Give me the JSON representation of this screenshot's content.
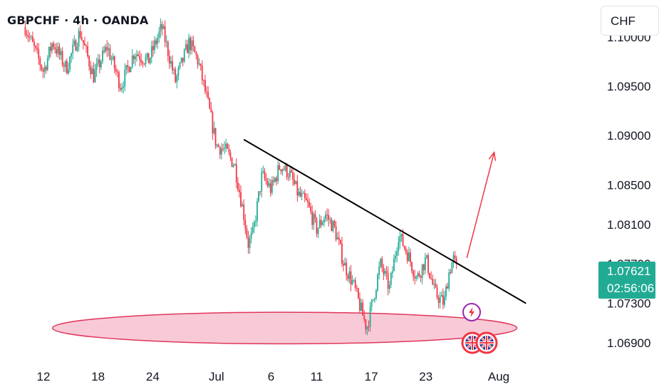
{
  "header": {
    "symbol_title": "GBPCHF · 4h · OANDA"
  },
  "currency_button": {
    "label": "CHF"
  },
  "last_price": {
    "price": "1.07621",
    "countdown": "02:56:06"
  },
  "colors": {
    "up": "#22ab94",
    "down": "#f23645",
    "trendline": "#000000",
    "zone_fill": "#f8cad7",
    "zone_stroke": "#e0365b",
    "arrow": "#f23645"
  },
  "chart_data": {
    "type": "candlestick",
    "title": "GBPCHF · 4h · OANDA",
    "y_axis": {
      "range": [
        1.0663,
        1.1012
      ],
      "tick_labels": [
        "1.10000",
        "1.09500",
        "1.09000",
        "1.08500",
        "1.08100",
        "1.07700",
        "1.07300",
        "1.06900"
      ],
      "tick_values": [
        1.1,
        1.095,
        1.09,
        1.085,
        1.081,
        1.077,
        1.073,
        1.069
      ]
    },
    "x_axis": {
      "tick_labels": [
        "12",
        "18",
        "24",
        "Jul",
        "6",
        "11",
        "17",
        "23",
        "Aug"
      ],
      "tick_values": [
        0,
        6,
        12,
        19,
        25,
        30,
        36,
        42,
        50
      ]
    },
    "path_points": [
      {
        "x": -2,
        "y": 1.101
      },
      {
        "x": 0,
        "y": 1.0965
      },
      {
        "x": 1,
        "y": 1.0995
      },
      {
        "x": 2.5,
        "y": 1.0968
      },
      {
        "x": 4,
        "y": 1.1005
      },
      {
        "x": 5.5,
        "y": 1.096
      },
      {
        "x": 7,
        "y": 1.099
      },
      {
        "x": 8.5,
        "y": 1.095
      },
      {
        "x": 10,
        "y": 1.0985
      },
      {
        "x": 11.5,
        "y": 1.0975
      },
      {
        "x": 13,
        "y": 1.101
      },
      {
        "x": 14.5,
        "y": 1.0955
      },
      {
        "x": 16,
        "y": 1.0995
      },
      {
        "x": 17,
        "y": 1.0975
      },
      {
        "x": 18,
        "y": 1.0935
      },
      {
        "x": 19,
        "y": 1.089
      },
      {
        "x": 20,
        "y": 1.0885
      },
      {
        "x": 21,
        "y": 1.087
      },
      {
        "x": 22,
        "y": 1.082
      },
      {
        "x": 22.5,
        "y": 1.079
      },
      {
        "x": 23,
        "y": 1.08
      },
      {
        "x": 24,
        "y": 1.086
      },
      {
        "x": 25,
        "y": 1.0845
      },
      {
        "x": 26,
        "y": 1.087
      },
      {
        "x": 27,
        "y": 1.0862
      },
      {
        "x": 28,
        "y": 1.084
      },
      {
        "x": 29,
        "y": 1.083
      },
      {
        "x": 30,
        "y": 1.0805
      },
      {
        "x": 31,
        "y": 1.082
      },
      {
        "x": 32,
        "y": 1.0805
      },
      {
        "x": 33,
        "y": 1.077
      },
      {
        "x": 34,
        "y": 1.075
      },
      {
        "x": 35,
        "y": 1.072
      },
      {
        "x": 35.5,
        "y": 1.0705
      },
      {
        "x": 36,
        "y": 1.0725
      },
      {
        "x": 37,
        "y": 1.077
      },
      {
        "x": 38,
        "y": 1.0745
      },
      {
        "x": 39,
        "y": 1.08
      },
      {
        "x": 40,
        "y": 1.078
      },
      {
        "x": 41,
        "y": 1.0755
      },
      {
        "x": 42,
        "y": 1.0775
      },
      {
        "x": 43,
        "y": 1.074
      },
      {
        "x": 44,
        "y": 1.073
      },
      {
        "x": 44.5,
        "y": 1.076
      },
      {
        "x": 45,
        "y": 1.0775
      },
      {
        "x": 45.5,
        "y": 1.0762
      }
    ],
    "annotations": {
      "trendline": {
        "from": {
          "x": 22,
          "y": 1.0896
        },
        "to": {
          "x": 53,
          "y": 1.073
        }
      },
      "support_zone": {
        "x_from": 1,
        "x_to": 52,
        "y_top": 1.0721,
        "y_bottom": 1.0689
      },
      "arrow": {
        "from": {
          "x": 46.5,
          "y": 1.0776
        },
        "to": {
          "x": 49.5,
          "y": 1.0883
        }
      }
    }
  }
}
